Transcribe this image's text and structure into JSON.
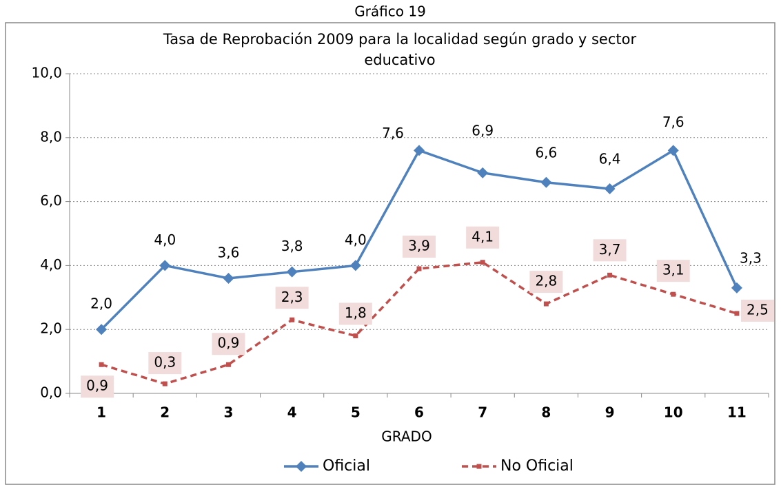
{
  "header": "Gráfico 19",
  "chart_data": {
    "type": "line",
    "title": "Tasa de Reprobación 2009 para la localidad según grado y sector",
    "title_line2": "educativo",
    "x_label": "GRADO",
    "categories": [
      "1",
      "2",
      "3",
      "4",
      "5",
      "6",
      "7",
      "8",
      "9",
      "10",
      "11"
    ],
    "series": [
      {
        "name": "Oficial",
        "color": "#4f81bd",
        "marker": "diamond",
        "dash": false,
        "values": [
          2.0,
          4.0,
          3.6,
          3.8,
          4.0,
          7.6,
          6.9,
          6.6,
          6.4,
          7.6,
          3.3
        ],
        "value_labels": [
          "2,0",
          "4,0",
          "3,6",
          "3,8",
          "4,0",
          "7,6",
          "6,9",
          "6,6",
          "6,4",
          "7,6",
          "3,3"
        ]
      },
      {
        "name": "No Oficial",
        "color": "#c0504d",
        "marker": "square",
        "dash": true,
        "values": [
          0.9,
          0.3,
          0.9,
          2.3,
          1.8,
          3.9,
          4.1,
          2.8,
          3.7,
          3.1,
          2.5
        ],
        "value_labels": [
          "0,9",
          "0,3",
          "0,9",
          "2,3",
          "1,8",
          "3,9",
          "4,1",
          "2,8",
          "3,7",
          "3,1",
          "2,5"
        ]
      }
    ],
    "ylim": [
      0,
      10
    ],
    "yticks": [
      {
        "value": 0,
        "label": "0,0"
      },
      {
        "value": 2,
        "label": "2,0"
      },
      {
        "value": 4,
        "label": "4,0"
      },
      {
        "value": 6,
        "label": "6,0"
      },
      {
        "value": 8,
        "label": "8,0"
      },
      {
        "value": 10,
        "label": "10,0"
      }
    ],
    "grid": true,
    "legend": "bottom"
  }
}
